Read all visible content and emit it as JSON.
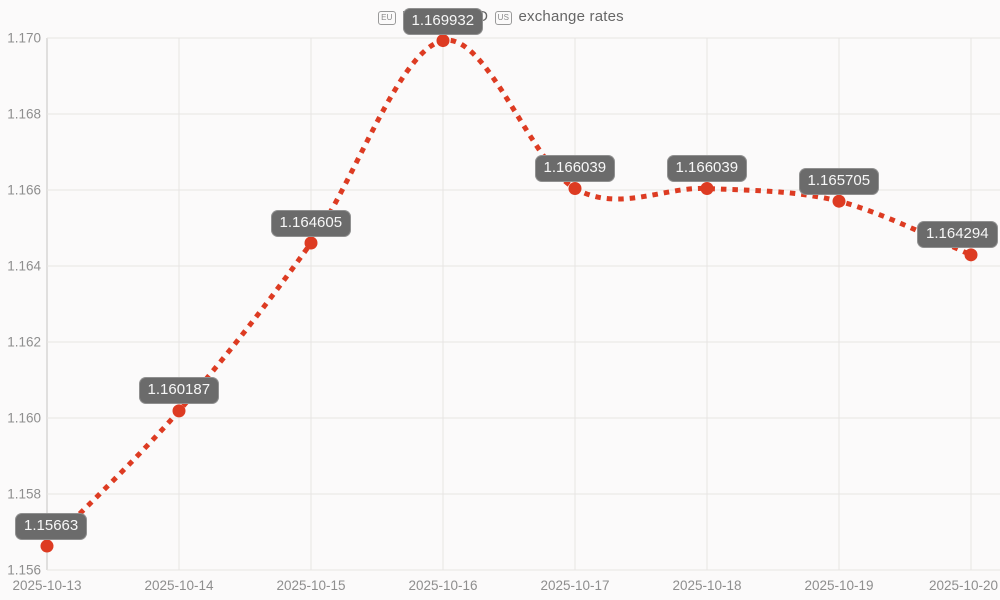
{
  "title": {
    "flag_eu": "EU",
    "text_mid": "EUR to USD",
    "flag_us": "US",
    "text_end": "exchange rates"
  },
  "chart_data": {
    "type": "line",
    "title": "EUR to USD exchange rates",
    "x": [
      "2025-10-13",
      "2025-10-14",
      "2025-10-15",
      "2025-10-16",
      "2025-10-17",
      "2025-10-18",
      "2025-10-19",
      "2025-10-20"
    ],
    "series": [
      {
        "name": "EUR to USD",
        "values": [
          1.15663,
          1.160187,
          1.164605,
          1.169932,
          1.166039,
          1.166039,
          1.165705,
          1.164294
        ]
      }
    ],
    "point_labels": [
      "1.15663",
      "1.160187",
      "1.164605",
      "1.169932",
      "1.166039",
      "1.166039",
      "1.165705",
      "1.164294"
    ],
    "ytick_labels": [
      "1.156",
      "1.158",
      "1.160",
      "1.162",
      "1.164",
      "1.166",
      "1.168",
      "1.170"
    ],
    "ylim": [
      1.156,
      1.17
    ],
    "xlabel": "",
    "ylabel": "",
    "grid": true,
    "legend": "none",
    "line_style": "dotted"
  },
  "colors": {
    "line": "#dd3b22",
    "point": "#dd3b22",
    "tooltip_bg": "#6b6b6b",
    "tooltip_text": "#f7f7f7",
    "grid": "#e7e5e3",
    "axis": "#c6c4c2",
    "tick_text": "#8e8e8e",
    "title_text": "#666666",
    "background": "#fbfafa"
  }
}
